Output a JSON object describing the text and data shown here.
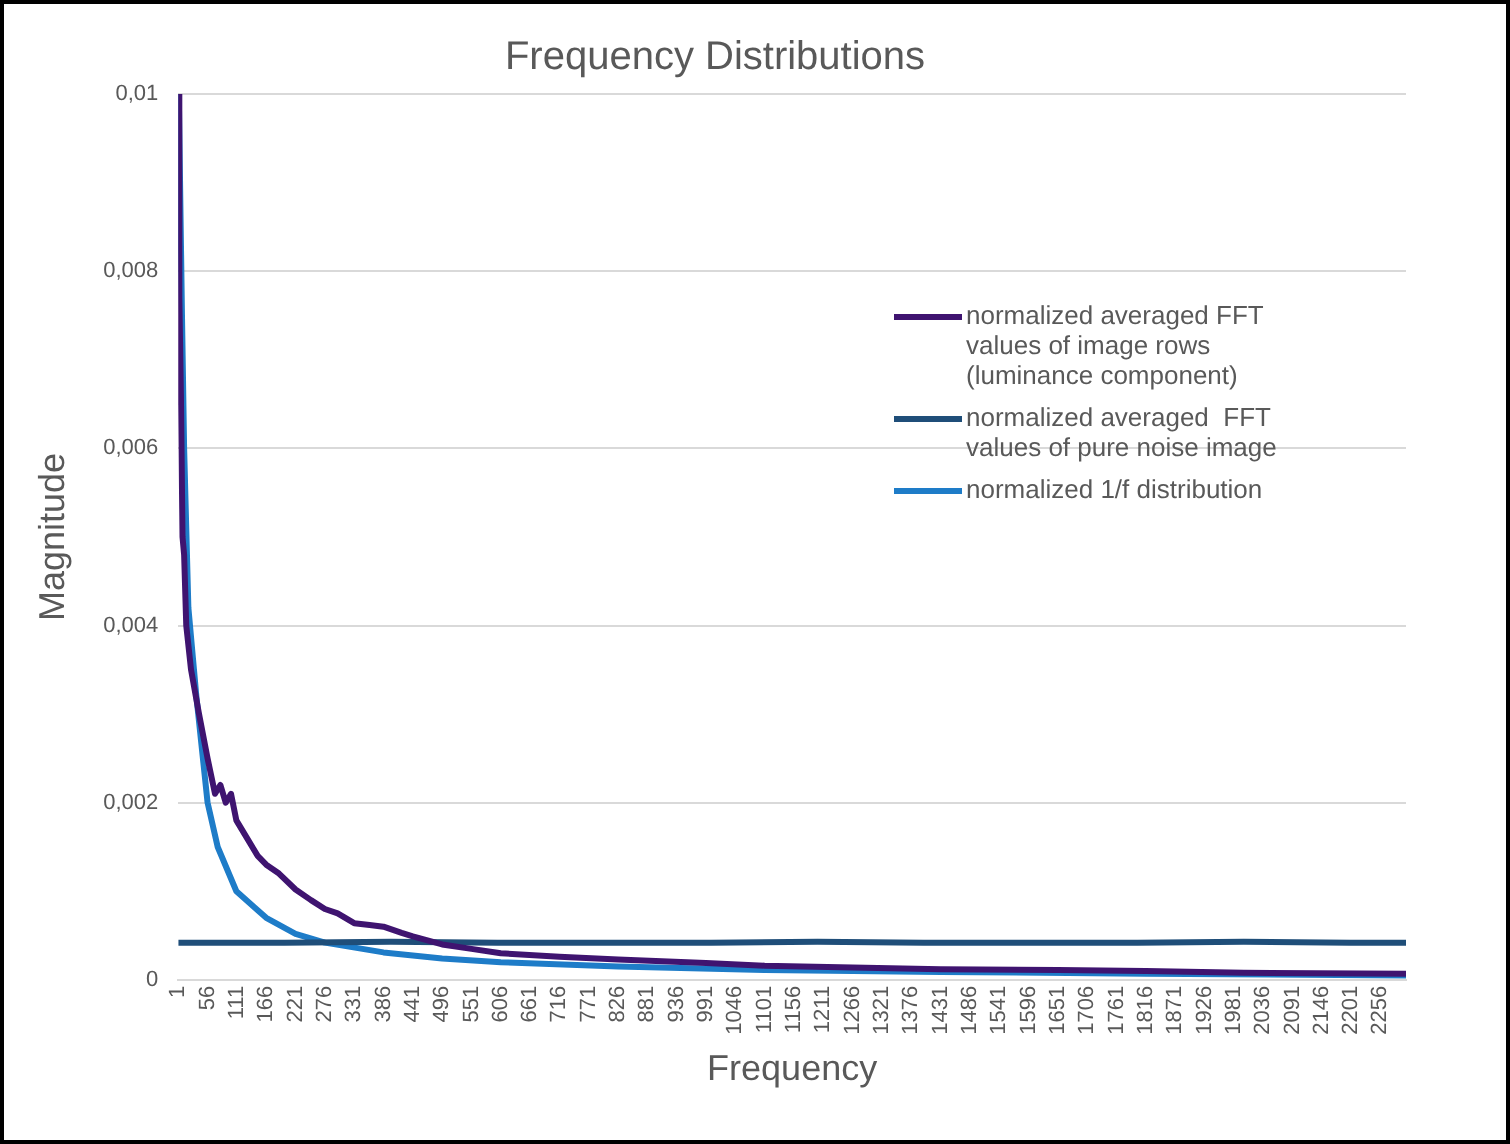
{
  "chart_data": {
    "type": "line",
    "title": "Frequency Distributions",
    "xlabel": "Frequency",
    "ylabel": "Magnitude",
    "xlim": [
      1,
      2304
    ],
    "xticks": [
      1,
      56,
      111,
      166,
      221,
      276,
      331,
      386,
      441,
      496,
      551,
      606,
      661,
      716,
      771,
      826,
      881,
      936,
      991,
      1046,
      1101,
      1156,
      1211,
      1266,
      1321,
      1376,
      1431,
      1486,
      1541,
      1596,
      1651,
      1706,
      1761,
      1816,
      1871,
      1926,
      1981,
      2036,
      2091,
      2146,
      2201,
      2256
    ],
    "ylim": [
      0,
      0.01
    ],
    "yticks": [
      {
        "value": 0,
        "label": "0"
      },
      {
        "value": 0.002,
        "label": "0,002"
      },
      {
        "value": 0.004,
        "label": "0,004"
      },
      {
        "value": 0.006,
        "label": "0,006"
      },
      {
        "value": 0.008,
        "label": "0,008"
      },
      {
        "value": 0.01,
        "label": "0,01"
      }
    ],
    "grid": "y",
    "legend": "right",
    "marker": "none",
    "line_style": "solid",
    "series": [
      {
        "name": "normalized averaged FFT values of image rows (luminance component)",
        "color": "#3f1470",
        "x": [
          1,
          3,
          6,
          9,
          12,
          16,
          25,
          40,
          56,
          70,
          80,
          90,
          100,
          110,
          130,
          150,
          166,
          190,
          221,
          250,
          276,
          300,
          331,
          360,
          386,
          420,
          441,
          496,
          551,
          606,
          716,
          826,
          991,
          1101,
          1266,
          1431,
          1651,
          1816,
          2000,
          2304
        ],
        "values": [
          0.01,
          0.0077,
          0.0066,
          0.005,
          0.0048,
          0.004,
          0.0035,
          0.003,
          0.0025,
          0.0021,
          0.0022,
          0.002,
          0.0021,
          0.0018,
          0.0016,
          0.0014,
          0.0013,
          0.0012,
          0.00102,
          0.0009,
          0.0008,
          0.00075,
          0.00064,
          0.00062,
          0.0006,
          0.00053,
          0.00049,
          0.0004,
          0.00035,
          0.0003,
          0.00026,
          0.00023,
          0.00019,
          0.00016,
          0.00014,
          0.00012,
          0.00011,
          0.0001,
          8e-05,
          7e-05
        ]
      },
      {
        "name": "normalized averaged  FFT values of pure noise image",
        "color": "#1f4e79",
        "x": [
          1,
          200,
          400,
          600,
          800,
          1000,
          1200,
          1400,
          1600,
          1800,
          2000,
          2200,
          2304
        ],
        "values": [
          0.00042,
          0.00042,
          0.00043,
          0.00042,
          0.00042,
          0.00042,
          0.00043,
          0.00042,
          0.00042,
          0.00042,
          0.00043,
          0.00042,
          0.00042
        ]
      },
      {
        "name": "normalized 1/f distribution",
        "color": "#1e7cc8",
        "x": [
          2,
          8,
          12,
          20,
          35,
          56,
          75,
          110,
          166,
          221,
          276,
          386,
          496,
          606,
          826,
          1101,
          1431,
          1816,
          2304
        ],
        "values": [
          0.01,
          0.0075,
          0.006,
          0.0042,
          0.0032,
          0.002,
          0.0015,
          0.001,
          0.0007,
          0.00052,
          0.00042,
          0.00031,
          0.00024,
          0.0002,
          0.00015,
          0.00011,
          9e-05,
          7e-05,
          5e-05
        ]
      }
    ]
  }
}
